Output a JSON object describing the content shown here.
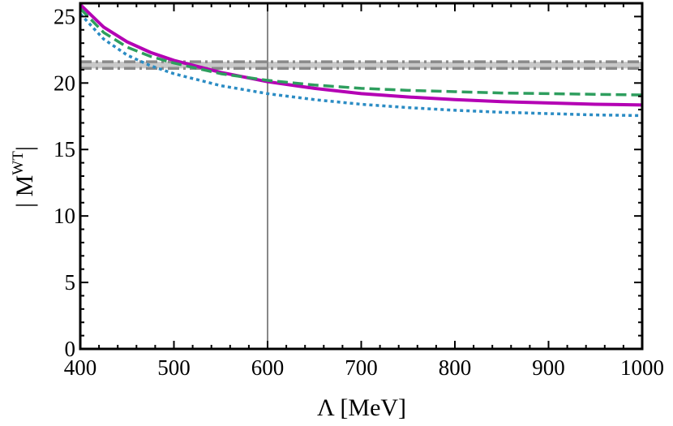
{
  "chart_data": {
    "type": "line",
    "xlabel": "Λ [MeV]",
    "ylabel": "| M",
    "ylabel_sup": "WT",
    "ylabel_close": "|",
    "xlim": [
      400,
      1000
    ],
    "ylim": [
      0,
      26
    ],
    "xticks": [
      400,
      500,
      600,
      700,
      800,
      900,
      1000
    ],
    "yticks": [
      0,
      5,
      10,
      15,
      20,
      25
    ],
    "grid": false,
    "vline": {
      "x": 600,
      "color": "#888888"
    },
    "band": {
      "low": 21.1,
      "high": 21.6,
      "color": "#c8c8c8",
      "edge_color": "#8a8a8a"
    },
    "series": [
      {
        "color": "#b400b4",
        "style": "solid",
        "x": [
          400,
          425,
          450,
          475,
          500,
          550,
          600,
          650,
          700,
          750,
          800,
          850,
          900,
          950,
          1000
        ],
        "y": [
          25.9,
          24.2,
          23.1,
          22.3,
          21.7,
          20.8,
          20.1,
          19.6,
          19.2,
          18.95,
          18.75,
          18.6,
          18.5,
          18.4,
          18.35
        ]
      },
      {
        "color": "#2e9e5e",
        "style": "dashed",
        "x": [
          400,
          425,
          450,
          475,
          500,
          550,
          600,
          650,
          700,
          750,
          800,
          850,
          900,
          950,
          1000
        ],
        "y": [
          25.6,
          23.8,
          22.7,
          22.0,
          21.5,
          20.7,
          20.2,
          19.85,
          19.6,
          19.45,
          19.35,
          19.25,
          19.2,
          19.15,
          19.1
        ]
      },
      {
        "color": "#2b8cc4",
        "style": "dotted",
        "x": [
          400,
          425,
          450,
          475,
          500,
          550,
          600,
          650,
          700,
          750,
          800,
          850,
          900,
          950,
          1000
        ],
        "y": [
          25.2,
          23.3,
          22.1,
          21.3,
          20.7,
          19.8,
          19.2,
          18.75,
          18.4,
          18.15,
          17.95,
          17.8,
          17.7,
          17.6,
          17.55
        ]
      }
    ]
  }
}
